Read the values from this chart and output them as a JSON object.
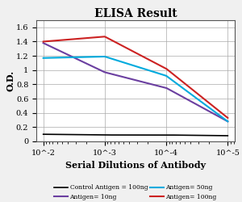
{
  "title": "ELISA Result",
  "ylabel": "O.D.",
  "xlabel": "Serial Dilutions of Antibody",
  "x_values": [
    0.01,
    0.001,
    0.0001,
    1e-05
  ],
  "control_antigen": {
    "label": "Control Antigen = 100ng",
    "color": "#000000",
    "y": [
      0.1,
      0.09,
      0.09,
      0.08
    ]
  },
  "antigen_10ng": {
    "label": "Antigen= 10ng",
    "color": "#6B3FA0",
    "y": [
      1.38,
      0.97,
      0.75,
      0.28
    ]
  },
  "antigen_50ng": {
    "label": "Antigen= 50ng",
    "color": "#00AADD",
    "y": [
      1.17,
      1.19,
      0.92,
      0.28
    ]
  },
  "antigen_100ng": {
    "label": "Antigen= 100ng",
    "color": "#CC2222",
    "y": [
      1.4,
      1.47,
      1.02,
      0.33
    ]
  },
  "ylim": [
    0,
    1.7
  ],
  "yticks": [
    0,
    0.2,
    0.4,
    0.6,
    0.8,
    1.0,
    1.2,
    1.4,
    1.6
  ],
  "xtick_labels": [
    "10^-2",
    "10^-3",
    "10^-4",
    "10^-5"
  ],
  "title_fontsize": 10,
  "axis_label_fontsize": 7,
  "tick_fontsize": 7,
  "legend_fontsize": 5.5,
  "bg_color": "#ffffff",
  "fig_color": "#f0f0f0"
}
